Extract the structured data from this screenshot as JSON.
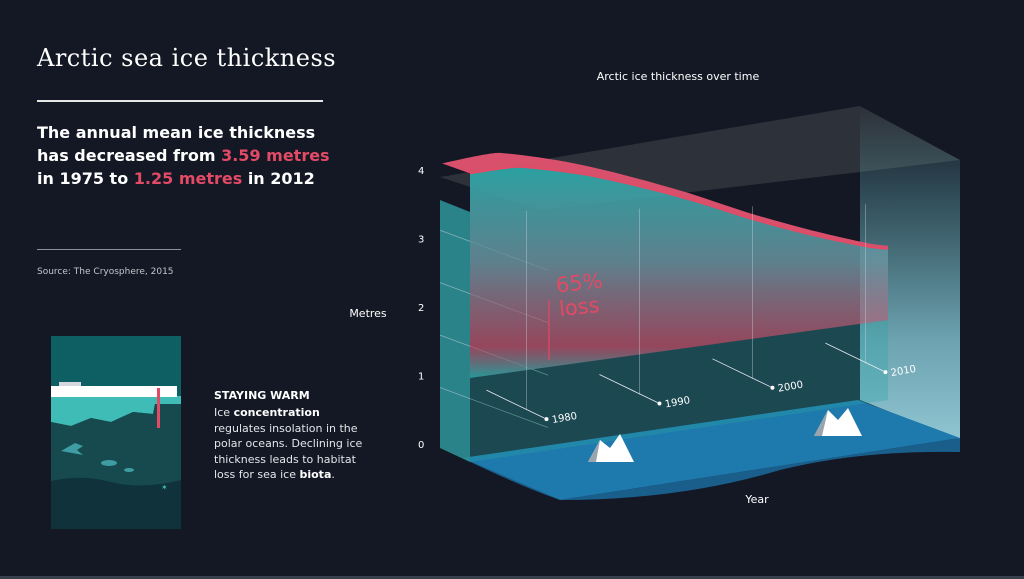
{
  "title": "Arctic sea ice thickness",
  "headline": {
    "part1": "The annual mean ice thickness has decreased from ",
    "value_start": "3.59 metres",
    "part2": " in 1975 to ",
    "value_end": "1.25 metres",
    "part3": " in 2012"
  },
  "source": "Source: The Cryosphere, 2015",
  "staying_warm": {
    "title": "STAYING WARM",
    "t1": "Ice ",
    "b1": "concentration",
    "t2": " regulates insolation in the polar oceans. Declining ice thickness leads to habitat loss for sea ice ",
    "b2": "biota",
    "t3": "."
  },
  "colors": {
    "background": "#141824",
    "accent_red": "#e24a66",
    "ice_teal": "#2a9b9b",
    "water_blue": "#1f7aa8"
  },
  "chart_data": {
    "type": "area",
    "title": "Arctic ice thickness over time",
    "xlabel": "Year",
    "ylabel": "Metres",
    "x_ticks": [
      1980,
      1990,
      2000,
      2010
    ],
    "y_ticks": [
      0,
      1,
      2,
      3,
      4
    ],
    "ylim": [
      0,
      4
    ],
    "xlim": [
      1975,
      2012
    ],
    "annotation": {
      "line1": "65%",
      "line2": "loss"
    },
    "series": [
      {
        "x": [
          1975,
          1978,
          1980,
          1985,
          1990,
          1995,
          2000,
          2005,
          2010,
          2012
        ],
        "values": [
          3.59,
          3.6,
          3.56,
          3.3,
          2.95,
          2.55,
          2.1,
          1.7,
          1.35,
          1.25
        ]
      }
    ]
  }
}
